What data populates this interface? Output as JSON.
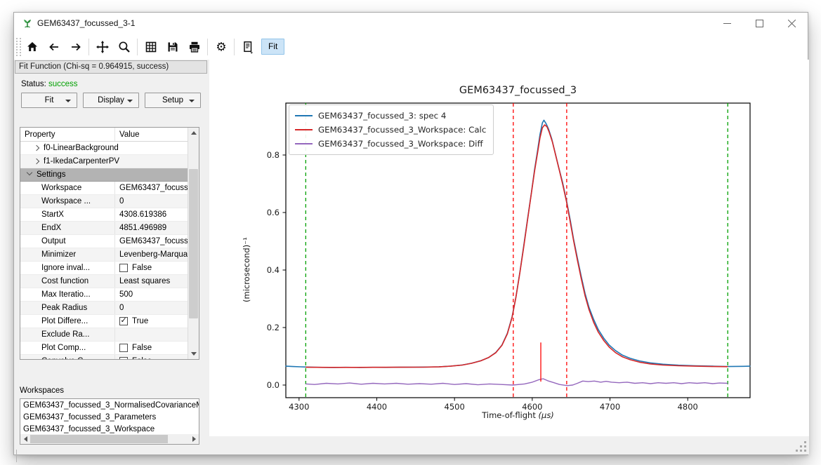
{
  "window": {
    "title": "GEM63437_focussed_3-1"
  },
  "toolbar": {
    "icons": [
      "home",
      "back",
      "forward",
      "sep",
      "pan",
      "zoom",
      "sep",
      "grid",
      "save",
      "print",
      "sep",
      "customize",
      "sep",
      "generate-script"
    ],
    "fit_label": "Fit"
  },
  "fit_panel": {
    "header": "Fit Function (Chi-sq = 0.964915, success)",
    "status_label": "Status:",
    "status_value": "success",
    "status_color": "#00a000",
    "buttons": [
      "Fit",
      "Display",
      "Setup"
    ],
    "table": {
      "columns": [
        "Property",
        "Value"
      ],
      "rows": [
        {
          "type": "group",
          "label": "f0-LinearBackground"
        },
        {
          "type": "group",
          "label": "f1-IkedaCarpenterPV"
        },
        {
          "type": "section",
          "label": "Settings"
        },
        {
          "type": "prop",
          "label": "Workspace",
          "value": "GEM63437_focusse..."
        },
        {
          "type": "prop",
          "label": "Workspace ...",
          "value": "0"
        },
        {
          "type": "prop",
          "label": "StartX",
          "value": "4308.619386"
        },
        {
          "type": "prop",
          "label": "EndX",
          "value": "4851.496989"
        },
        {
          "type": "prop",
          "label": "Output",
          "value": "GEM63437_focusse..."
        },
        {
          "type": "prop",
          "label": "Minimizer",
          "value": "Levenberg-Marqua..."
        },
        {
          "type": "prop",
          "label": "Ignore inval...",
          "value": "False",
          "checkbox": false
        },
        {
          "type": "prop",
          "label": "Cost function",
          "value": "Least squares"
        },
        {
          "type": "prop",
          "label": "Max Iteratio...",
          "value": "500"
        },
        {
          "type": "prop",
          "label": "Peak Radius",
          "value": "0"
        },
        {
          "type": "prop",
          "label": "Plot Differe...",
          "value": "True",
          "checkbox": true
        },
        {
          "type": "prop",
          "label": "Exclude Ra...",
          "value": ""
        },
        {
          "type": "prop",
          "label": "Plot Comp...",
          "value": "False",
          "checkbox": false
        },
        {
          "type": "prop",
          "label": "Convolve C...",
          "value": "False",
          "checkbox": false
        }
      ]
    },
    "workspaces_label": "Workspaces",
    "workspaces": [
      "GEM63437_focussed_3_NormalisedCovarianceM",
      "GEM63437_focussed_3_Parameters",
      "GEM63437_focussed_3_Workspace"
    ]
  },
  "chart_data": {
    "type": "line",
    "title": "GEM63437_focussed_3",
    "xlabel_main": "Time-of-flight ",
    "xlabel_unit": "(μs)",
    "ylabel": "(microsecond)⁻¹",
    "xlim": [
      4283,
      4880.2
    ],
    "ylim": [
      -0.0439,
      0.9805
    ],
    "xticks": [
      4300,
      4400,
      4500,
      4600,
      4700,
      4800
    ],
    "yticks": [
      0.0,
      0.2,
      0.4,
      0.6,
      0.8
    ],
    "grid": false,
    "legend_position": "upper-left",
    "series": [
      {
        "name": "GEM63437_focussed_3: spec 4",
        "color": "#1f77b4",
        "width": 1.6,
        "points": [
          [
            4283,
            0.0655
          ],
          [
            4292,
            0.0645
          ],
          [
            4302,
            0.0635
          ],
          [
            4309,
            0.0628
          ],
          [
            4318,
            0.062
          ],
          [
            4330,
            0.0615
          ],
          [
            4345,
            0.0612
          ],
          [
            4360,
            0.0618
          ],
          [
            4378,
            0.0613
          ],
          [
            4395,
            0.0618
          ],
          [
            4412,
            0.0615
          ],
          [
            4430,
            0.062
          ],
          [
            4448,
            0.0622
          ],
          [
            4465,
            0.0626
          ],
          [
            4480,
            0.0634
          ],
          [
            4495,
            0.0658
          ],
          [
            4510,
            0.0697
          ],
          [
            4522,
            0.0758
          ],
          [
            4534,
            0.0846
          ],
          [
            4544,
            0.0958
          ],
          [
            4553,
            0.113
          ],
          [
            4561,
            0.139
          ],
          [
            4568,
            0.18
          ],
          [
            4574,
            0.237
          ],
          [
            4579,
            0.306
          ],
          [
            4584,
            0.392
          ],
          [
            4589,
            0.484
          ],
          [
            4594,
            0.578
          ],
          [
            4599,
            0.672
          ],
          [
            4603,
            0.75
          ],
          [
            4607,
            0.818
          ],
          [
            4610,
            0.872
          ],
          [
            4613,
            0.912
          ],
          [
            4615,
            0.921
          ],
          [
            4618,
            0.908
          ],
          [
            4621,
            0.89
          ],
          [
            4625,
            0.857
          ],
          [
            4629,
            0.812
          ],
          [
            4634,
            0.757
          ],
          [
            4639,
            0.705
          ],
          [
            4644,
            0.642
          ],
          [
            4649,
            0.572
          ],
          [
            4653,
            0.51
          ],
          [
            4658,
            0.442
          ],
          [
            4663,
            0.378
          ],
          [
            4668,
            0.318
          ],
          [
            4673,
            0.27
          ],
          [
            4679,
            0.228
          ],
          [
            4685,
            0.193
          ],
          [
            4692,
            0.163
          ],
          [
            4699,
            0.139
          ],
          [
            4707,
            0.12
          ],
          [
            4716,
            0.104
          ],
          [
            4726,
            0.093
          ],
          [
            4738,
            0.084
          ],
          [
            4752,
            0.077
          ],
          [
            4768,
            0.0725
          ],
          [
            4788,
            0.069
          ],
          [
            4810,
            0.067
          ],
          [
            4832,
            0.0655
          ],
          [
            4851,
            0.0645
          ],
          [
            4862,
            0.0648
          ],
          [
            4872,
            0.0652
          ],
          [
            4880,
            0.0655
          ]
        ]
      },
      {
        "name": "GEM63437_focussed_3_Workspace: Calc",
        "color": "#d62728",
        "width": 1.6,
        "points": [
          [
            4309,
            0.062
          ],
          [
            4320,
            0.0617
          ],
          [
            4340,
            0.0614
          ],
          [
            4370,
            0.0615
          ],
          [
            4400,
            0.0617
          ],
          [
            4430,
            0.0619
          ],
          [
            4460,
            0.0623
          ],
          [
            4480,
            0.0632
          ],
          [
            4495,
            0.0655
          ],
          [
            4510,
            0.0695
          ],
          [
            4522,
            0.0755
          ],
          [
            4534,
            0.0845
          ],
          [
            4544,
            0.096
          ],
          [
            4553,
            0.112
          ],
          [
            4561,
            0.138
          ],
          [
            4568,
            0.178
          ],
          [
            4574,
            0.235
          ],
          [
            4579,
            0.305
          ],
          [
            4584,
            0.39
          ],
          [
            4589,
            0.48
          ],
          [
            4594,
            0.575
          ],
          [
            4599,
            0.67
          ],
          [
            4603,
            0.745
          ],
          [
            4607,
            0.81
          ],
          [
            4610,
            0.86
          ],
          [
            4613,
            0.895
          ],
          [
            4616,
            0.905
          ],
          [
            4619,
            0.898
          ],
          [
            4622,
            0.878
          ],
          [
            4626,
            0.845
          ],
          [
            4630,
            0.8
          ],
          [
            4635,
            0.745
          ],
          [
            4639,
            0.7
          ],
          [
            4644,
            0.638
          ],
          [
            4649,
            0.565
          ],
          [
            4653,
            0.505
          ],
          [
            4658,
            0.435
          ],
          [
            4663,
            0.37
          ],
          [
            4668,
            0.31
          ],
          [
            4673,
            0.262
          ],
          [
            4679,
            0.218
          ],
          [
            4685,
            0.184
          ],
          [
            4692,
            0.155
          ],
          [
            4699,
            0.132
          ],
          [
            4707,
            0.113
          ],
          [
            4716,
            0.098
          ],
          [
            4726,
            0.088
          ],
          [
            4738,
            0.0795
          ],
          [
            4752,
            0.0735
          ],
          [
            4768,
            0.0695
          ],
          [
            4788,
            0.067
          ],
          [
            4810,
            0.0655
          ],
          [
            4832,
            0.0645
          ],
          [
            4851,
            0.064
          ]
        ]
      },
      {
        "name": "GEM63437_focussed_3_Workspace: Diff",
        "color": "#9467bd",
        "width": 1.4,
        "points": [
          [
            4309,
            0.004
          ],
          [
            4320,
            0.002
          ],
          [
            4335,
            0.006
          ],
          [
            4350,
            0.004
          ],
          [
            4365,
            0.007
          ],
          [
            4380,
            0.003
          ],
          [
            4395,
            0.006
          ],
          [
            4410,
            0.004
          ],
          [
            4425,
            0.006
          ],
          [
            4440,
            0.003
          ],
          [
            4455,
            0.005
          ],
          [
            4470,
            0.003
          ],
          [
            4485,
            0.006
          ],
          [
            4500,
            0.002
          ],
          [
            4515,
            0.005
          ],
          [
            4530,
            0.001
          ],
          [
            4545,
            0.004
          ],
          [
            4560,
            0.002
          ],
          [
            4575,
            0.0
          ],
          [
            4590,
            0.004
          ],
          [
            4600,
            0.01
          ],
          [
            4608,
            0.018
          ],
          [
            4614,
            0.022
          ],
          [
            4620,
            0.015
          ],
          [
            4628,
            0.008
          ],
          [
            4635,
            0.002
          ],
          [
            4645,
            -0.002
          ],
          [
            4652,
            0.0
          ],
          [
            4658,
            0.006
          ],
          [
            4665,
            0.014
          ],
          [
            4672,
            0.012
          ],
          [
            4680,
            0.014
          ],
          [
            4688,
            0.01
          ],
          [
            4695,
            0.013
          ],
          [
            4702,
            0.01
          ],
          [
            4712,
            0.008
          ],
          [
            4722,
            0.01
          ],
          [
            4732,
            0.006
          ],
          [
            4742,
            0.008
          ],
          [
            4752,
            0.005
          ],
          [
            4762,
            0.008
          ],
          [
            4772,
            0.006
          ],
          [
            4782,
            0.008
          ],
          [
            4792,
            0.005
          ],
          [
            4802,
            0.008
          ],
          [
            4812,
            0.006
          ],
          [
            4822,
            0.008
          ],
          [
            4832,
            0.005
          ],
          [
            4841,
            0.007
          ],
          [
            4851,
            0.006
          ]
        ]
      }
    ],
    "vlines": [
      {
        "name": "fit-range-start-marker",
        "x": 4308.619386,
        "color": "#00a000",
        "dash": "5 4"
      },
      {
        "name": "fit-range-end-marker",
        "x": 4851.496989,
        "color": "#00a000",
        "dash": "5 4"
      },
      {
        "name": "peak-left-bound-marker",
        "x": 4575.6,
        "color": "#ff0000",
        "dash": "5 4"
      },
      {
        "name": "peak-right-bound-marker",
        "x": 4644.3,
        "color": "#ff0000",
        "dash": "5 4"
      }
    ],
    "peak_marker": {
      "x": 4611,
      "y1": 0.012,
      "y2": 0.148,
      "color": "#ff0000"
    }
  }
}
